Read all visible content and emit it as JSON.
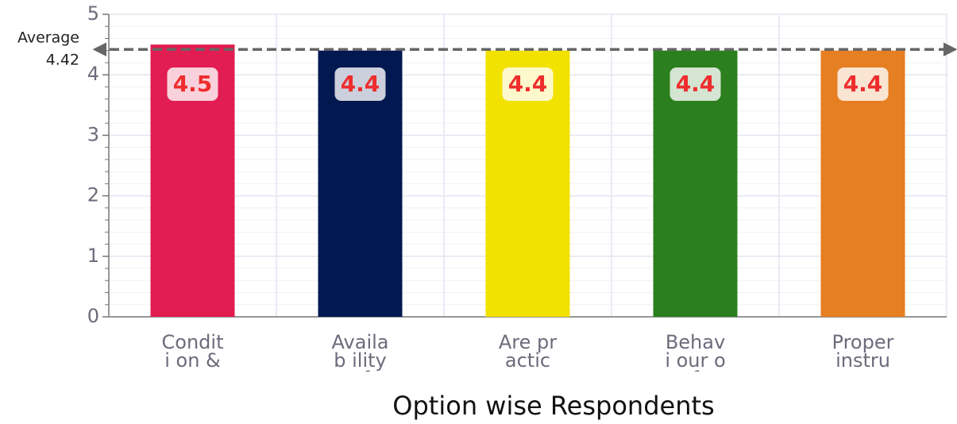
{
  "chart_data": {
    "type": "bar",
    "categories": [
      "Conditi on &",
      "Availab ility of",
      "Are practic",
      "Behavi our of",
      "Proper instruc"
    ],
    "values": [
      4.5,
      4.4,
      4.4,
      4.4,
      4.4
    ],
    "colors": [
      "#e11d52",
      "#011851",
      "#f2e200",
      "#2c7f1e",
      "#e67e22"
    ],
    "x_label": "Option wise Respondents",
    "ylim": [
      0,
      5
    ],
    "yticks": [
      0,
      1,
      2,
      3,
      4,
      5
    ],
    "grid": true,
    "average": {
      "label": "Average",
      "value": 4.42
    }
  }
}
